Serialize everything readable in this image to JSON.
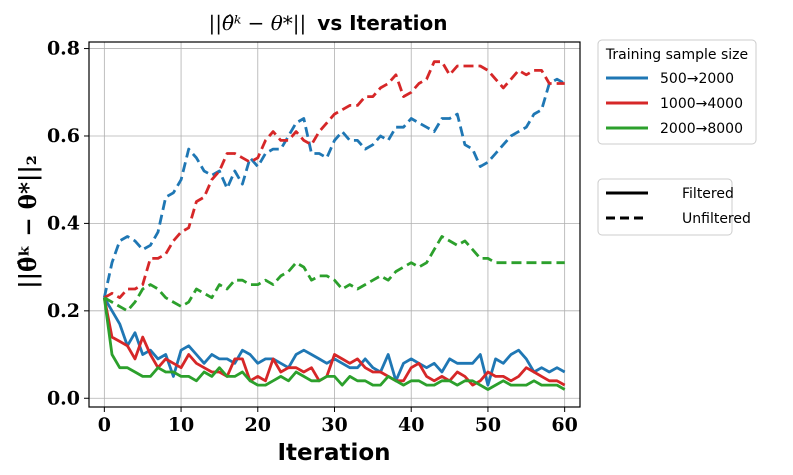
{
  "chart_data": {
    "type": "line",
    "title": "||θ̂ᵏ − θ*|| vs Iteration",
    "title_math": "||θ̂ᵏ − θ*||",
    "title_text": "vs Iteration",
    "xlabel": "Iteration",
    "ylabel": "||θ̂ᵏ − θ*||₂",
    "xlim": [
      -2,
      62
    ],
    "ylim": [
      -0.02,
      0.815
    ],
    "xticks": [
      0,
      10,
      20,
      30,
      40,
      50,
      60
    ],
    "yticks": [
      0.0,
      0.2,
      0.4,
      0.6,
      0.8
    ],
    "xtick_labels": [
      "0",
      "10",
      "20",
      "30",
      "40",
      "50",
      "60"
    ],
    "ytick_labels": [
      "0.0",
      "0.2",
      "0.4",
      "0.6",
      "0.8"
    ],
    "grid": true,
    "legend_size": {
      "title": "Training sample size",
      "placement": "right-top",
      "entries": [
        {
          "label": "500→2000",
          "color": "#1f77b4"
        },
        {
          "label": "1000→4000",
          "color": "#d62728"
        },
        {
          "label": "2000→8000",
          "color": "#2ca02c"
        }
      ]
    },
    "legend_style": {
      "placement": "right-middle",
      "entries": [
        {
          "label": "Filtered",
          "dash": "solid"
        },
        {
          "label": "Unfiltered",
          "dash": "dashed"
        }
      ]
    },
    "x": [
      0,
      1,
      2,
      3,
      4,
      5,
      6,
      7,
      8,
      9,
      10,
      11,
      12,
      13,
      14,
      15,
      16,
      17,
      18,
      19,
      20,
      21,
      22,
      23,
      24,
      25,
      26,
      27,
      28,
      29,
      30,
      31,
      32,
      33,
      34,
      35,
      36,
      37,
      38,
      39,
      40,
      41,
      42,
      43,
      44,
      45,
      46,
      47,
      48,
      49,
      50,
      51,
      52,
      53,
      54,
      55,
      56,
      57,
      58,
      59,
      60
    ],
    "series": [
      {
        "name": "500→2000 Filtered",
        "color": "#1f77b4",
        "dash": "solid",
        "values": [
          0.23,
          0.2,
          0.17,
          0.12,
          0.15,
          0.1,
          0.11,
          0.09,
          0.1,
          0.05,
          0.11,
          0.12,
          0.1,
          0.08,
          0.1,
          0.09,
          0.09,
          0.08,
          0.11,
          0.1,
          0.08,
          0.09,
          0.09,
          0.08,
          0.07,
          0.1,
          0.11,
          0.1,
          0.09,
          0.08,
          0.09,
          0.08,
          0.07,
          0.07,
          0.09,
          0.07,
          0.06,
          0.1,
          0.04,
          0.08,
          0.09,
          0.08,
          0.07,
          0.08,
          0.06,
          0.09,
          0.08,
          0.08,
          0.08,
          0.1,
          0.03,
          0.09,
          0.08,
          0.1,
          0.11,
          0.09,
          0.06,
          0.07,
          0.06,
          0.07,
          0.06
        ]
      },
      {
        "name": "1000→4000 Filtered",
        "color": "#d62728",
        "dash": "solid",
        "values": [
          0.23,
          0.14,
          0.13,
          0.12,
          0.09,
          0.14,
          0.1,
          0.07,
          0.09,
          0.08,
          0.07,
          0.1,
          0.08,
          0.07,
          0.06,
          0.06,
          0.05,
          0.09,
          0.09,
          0.04,
          0.05,
          0.04,
          0.09,
          0.06,
          0.07,
          0.07,
          0.06,
          0.07,
          0.04,
          0.05,
          0.1,
          0.09,
          0.08,
          0.09,
          0.07,
          0.06,
          0.06,
          0.05,
          0.04,
          0.04,
          0.07,
          0.08,
          0.05,
          0.04,
          0.05,
          0.04,
          0.06,
          0.05,
          0.03,
          0.04,
          0.06,
          0.05,
          0.05,
          0.04,
          0.05,
          0.07,
          0.06,
          0.05,
          0.04,
          0.04,
          0.03
        ]
      },
      {
        "name": "2000→8000 Filtered",
        "color": "#2ca02c",
        "dash": "solid",
        "values": [
          0.23,
          0.1,
          0.07,
          0.07,
          0.06,
          0.05,
          0.05,
          0.07,
          0.06,
          0.06,
          0.05,
          0.05,
          0.04,
          0.06,
          0.05,
          0.07,
          0.05,
          0.05,
          0.06,
          0.04,
          0.03,
          0.03,
          0.04,
          0.05,
          0.04,
          0.06,
          0.05,
          0.04,
          0.04,
          0.05,
          0.05,
          0.03,
          0.05,
          0.04,
          0.04,
          0.03,
          0.03,
          0.05,
          0.04,
          0.03,
          0.04,
          0.04,
          0.03,
          0.03,
          0.04,
          0.04,
          0.03,
          0.04,
          0.04,
          0.03,
          0.02,
          0.03,
          0.04,
          0.03,
          0.03,
          0.03,
          0.04,
          0.03,
          0.03,
          0.03,
          0.02
        ]
      },
      {
        "name": "500→2000 Unfiltered",
        "color": "#1f77b4",
        "dash": "dashed",
        "values": [
          0.23,
          0.31,
          0.36,
          0.37,
          0.36,
          0.34,
          0.35,
          0.38,
          0.46,
          0.47,
          0.5,
          0.57,
          0.55,
          0.52,
          0.51,
          0.52,
          0.48,
          0.52,
          0.49,
          0.55,
          0.53,
          0.56,
          0.57,
          0.57,
          0.6,
          0.63,
          0.64,
          0.56,
          0.56,
          0.55,
          0.59,
          0.61,
          0.59,
          0.59,
          0.57,
          0.58,
          0.6,
          0.59,
          0.62,
          0.62,
          0.64,
          0.63,
          0.62,
          0.61,
          0.64,
          0.64,
          0.65,
          0.58,
          0.57,
          0.53,
          0.54,
          0.56,
          0.58,
          0.6,
          0.61,
          0.62,
          0.65,
          0.66,
          0.72,
          0.73,
          0.72
        ]
      },
      {
        "name": "1000→4000 Unfiltered",
        "color": "#d62728",
        "dash": "dashed",
        "values": [
          0.23,
          0.24,
          0.23,
          0.25,
          0.25,
          0.26,
          0.32,
          0.32,
          0.33,
          0.36,
          0.38,
          0.39,
          0.45,
          0.46,
          0.5,
          0.52,
          0.56,
          0.56,
          0.55,
          0.54,
          0.55,
          0.59,
          0.61,
          0.59,
          0.59,
          0.61,
          0.59,
          0.58,
          0.61,
          0.63,
          0.65,
          0.66,
          0.67,
          0.67,
          0.69,
          0.69,
          0.71,
          0.72,
          0.74,
          0.69,
          0.7,
          0.72,
          0.73,
          0.77,
          0.77,
          0.74,
          0.76,
          0.76,
          0.76,
          0.76,
          0.75,
          0.73,
          0.71,
          0.73,
          0.75,
          0.74,
          0.75,
          0.75,
          0.72,
          0.72,
          0.72
        ]
      },
      {
        "name": "2000→8000 Unfiltered",
        "color": "#2ca02c",
        "dash": "dashed",
        "values": [
          0.23,
          0.22,
          0.21,
          0.2,
          0.22,
          0.25,
          0.26,
          0.25,
          0.23,
          0.22,
          0.21,
          0.22,
          0.25,
          0.24,
          0.23,
          0.26,
          0.25,
          0.27,
          0.27,
          0.26,
          0.26,
          0.27,
          0.26,
          0.28,
          0.29,
          0.31,
          0.3,
          0.27,
          0.28,
          0.28,
          0.27,
          0.25,
          0.26,
          0.25,
          0.26,
          0.27,
          0.28,
          0.27,
          0.29,
          0.3,
          0.31,
          0.3,
          0.31,
          0.34,
          0.37,
          0.36,
          0.35,
          0.36,
          0.34,
          0.32,
          0.32,
          0.31,
          0.31,
          0.31,
          0.31,
          0.31,
          0.31,
          0.31,
          0.31,
          0.31,
          0.31
        ]
      }
    ]
  }
}
